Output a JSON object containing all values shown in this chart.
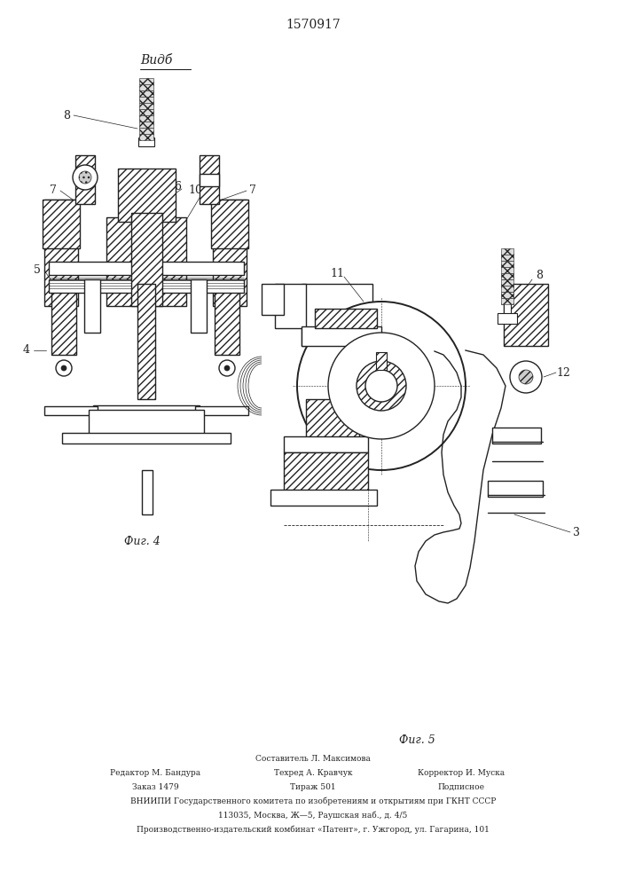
{
  "title": "1570917",
  "fig4_label": "Фиг. 4",
  "fig5_label": "Фиг. 5",
  "view_label": "Видб",
  "bg_color": "#ffffff",
  "line_color": "#222222",
  "footer_col1_line1": "Редактор М. Бандура",
  "footer_col1_line2": "Заказ 1479",
  "footer_col2_line0": "Составитель Л. Максимова",
  "footer_col2_line1": "Техред А. Кравчук",
  "footer_col2_line2": "Тираж 501",
  "footer_col3_line1": "Корректор И. Муска",
  "footer_col3_line2": "Подписное",
  "footer_line3": "ВНИИПИ Государственного комитета по изобретениям и открытиям при ГКНТ СССР",
  "footer_line4": "113035, Москва, Ж—5, Раушская наб., д. 4/5",
  "footer_line5": "Производственно-издательский комбинат «Патент», г. Ужгород, ул. Гагарина, 101"
}
